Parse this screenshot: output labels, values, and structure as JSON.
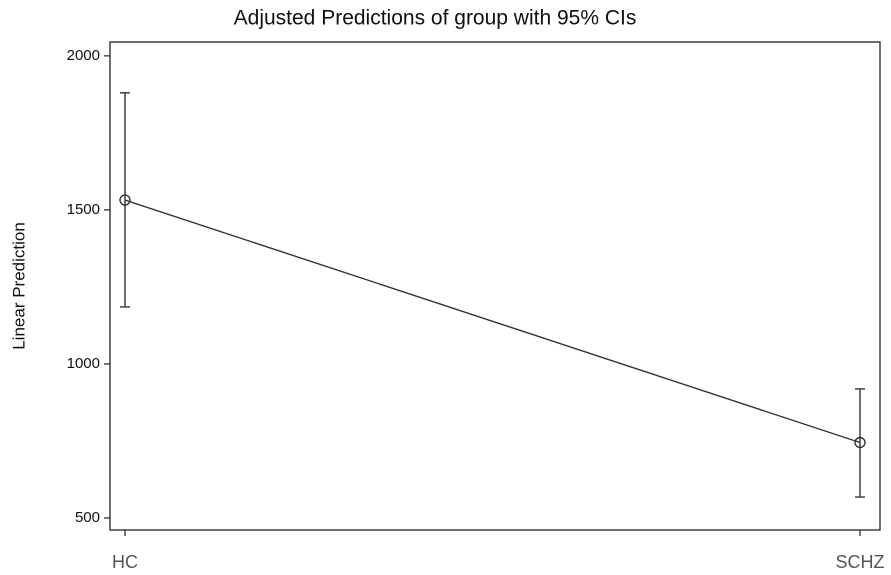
{
  "chart_data": {
    "type": "line",
    "title": "Adjusted Predictions of group with 95% CIs",
    "y_label": "Linear Prediction",
    "categories": [
      "HC",
      "SCHZ"
    ],
    "values": [
      1532,
      745
    ],
    "ci_lower": [
      1185,
      568
    ],
    "ci_upper": [
      1880,
      919
    ],
    "color": "#333333",
    "ylim": [
      461,
      2045
    ],
    "yticks": [
      500,
      1000,
      1500,
      2000
    ]
  }
}
